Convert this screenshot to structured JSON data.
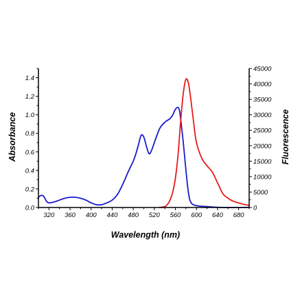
{
  "chart_data": {
    "type": "line",
    "title": "",
    "xlabel": "Wavelength (nm)",
    "ylabel": "Absorbance",
    "y2label": "Fluorescence",
    "xlim": [
      300,
      700
    ],
    "ylim": [
      0,
      1.5
    ],
    "y2lim": [
      0,
      45000
    ],
    "xticks": [
      "320",
      "360",
      "400",
      "440",
      "480",
      "520",
      "560",
      "600",
      "640",
      "680"
    ],
    "yticks": [
      "0.0",
      "0.2",
      "0.4",
      "0.6",
      "0.8",
      "1.0",
      "1.2",
      "1.4"
    ],
    "y2ticks": [
      "0",
      "5000",
      "10000",
      "15000",
      "20000",
      "25000",
      "30000",
      "35000",
      "40000",
      "45000"
    ],
    "grid": false,
    "legend": "none",
    "series": [
      {
        "axis": "left",
        "color": "#1a1acc",
        "x": [
          300,
          305,
          310,
          315,
          320,
          330,
          340,
          350,
          360,
          370,
          380,
          390,
          400,
          410,
          420,
          430,
          440,
          450,
          460,
          470,
          480,
          485,
          490,
          495,
          500,
          505,
          510,
          515,
          520,
          530,
          540,
          550,
          555,
          560,
          565,
          568,
          570,
          575,
          580,
          585,
          590,
          600,
          620,
          650,
          700
        ],
        "y": [
          0.11,
          0.13,
          0.12,
          0.07,
          0.05,
          0.06,
          0.08,
          0.1,
          0.11,
          0.11,
          0.1,
          0.08,
          0.05,
          0.03,
          0.03,
          0.05,
          0.08,
          0.14,
          0.25,
          0.38,
          0.5,
          0.58,
          0.68,
          0.78,
          0.76,
          0.66,
          0.58,
          0.62,
          0.7,
          0.85,
          0.92,
          0.96,
          1.0,
          1.06,
          1.08,
          1.04,
          0.95,
          0.7,
          0.4,
          0.15,
          0.05,
          0.02,
          0.01,
          0.0,
          0.0
        ]
      },
      {
        "axis": "right",
        "color": "#e61919",
        "x": [
          530,
          540,
          545,
          550,
          555,
          560,
          565,
          570,
          575,
          580,
          585,
          590,
          595,
          600,
          610,
          620,
          630,
          640,
          650,
          660,
          670,
          680,
          690,
          700
        ],
        "y": [
          0,
          300,
          1000,
          2500,
          5000,
          9500,
          17000,
          28000,
          37000,
          41500,
          40000,
          34000,
          27000,
          21000,
          16000,
          13500,
          11500,
          8000,
          4500,
          3000,
          2000,
          1500,
          1000,
          700
        ]
      }
    ]
  }
}
